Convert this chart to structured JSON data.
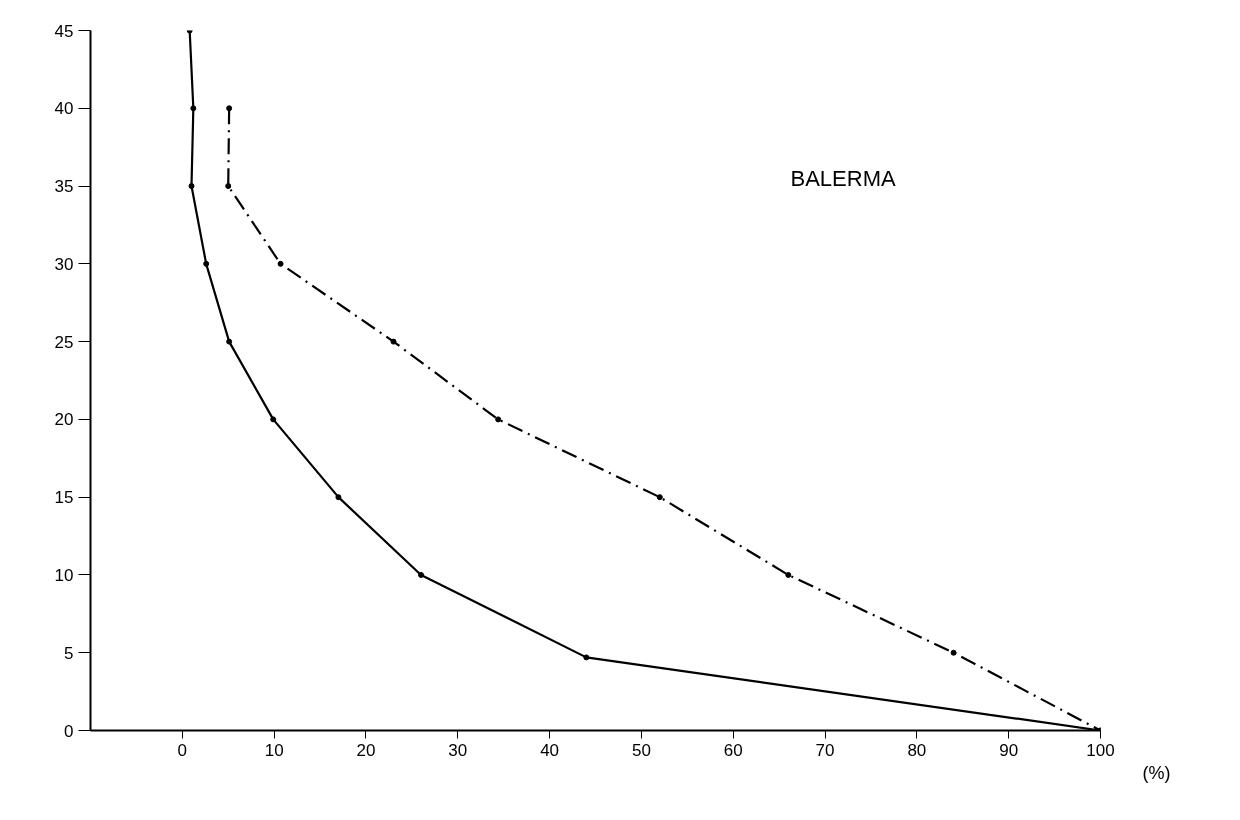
{
  "chart_data": {
    "type": "line",
    "title": "BALERMA",
    "xlabel": "(%)",
    "xlim": [
      -10,
      100
    ],
    "ylim": [
      0,
      45
    ],
    "xticks": [
      0,
      10,
      20,
      30,
      40,
      50,
      60,
      70,
      80,
      90,
      100
    ],
    "yticks": [
      0,
      5,
      10,
      15,
      20,
      25,
      30,
      35,
      40,
      45
    ],
    "grid": false,
    "marker": "circle",
    "series": [
      {
        "color": "#000000",
        "line_style": "solid",
        "x": [
          0.8,
          1.2,
          1,
          2.6,
          5.1,
          9.9,
          17,
          26,
          44,
          100
        ],
        "values": [
          45,
          40,
          35,
          30,
          25,
          20,
          15,
          10,
          4.7,
          0
        ]
      },
      {
        "color": "#000000",
        "line_style": "dashed",
        "x": [
          5.1,
          5,
          10.7,
          23,
          34.4,
          52,
          66,
          84,
          100
        ],
        "values": [
          40,
          35,
          30,
          25,
          20,
          15,
          10,
          5,
          0
        ]
      }
    ]
  }
}
